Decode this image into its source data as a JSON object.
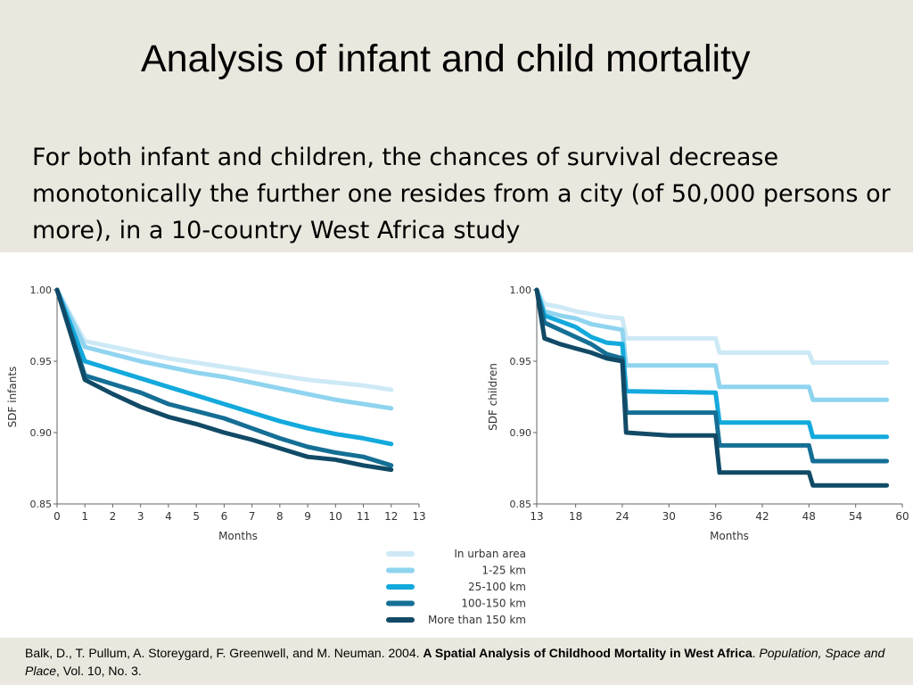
{
  "slide": {
    "title": "Analysis of infant and child mortality",
    "body": "For both infant and children, the chances of survival decrease monotonically the further one resides from a city (of 50,000 persons or more), in a 10-country West Africa study"
  },
  "legend": {
    "items": [
      {
        "label": "In urban area",
        "color": "#cde9f6"
      },
      {
        "label": "1-25 km",
        "color": "#8fd4ef"
      },
      {
        "label": "25-100 km",
        "color": "#13a9dd"
      },
      {
        "label": "100-150 km",
        "color": "#156f95"
      },
      {
        "label": "More than 150 km",
        "color": "#114a66"
      }
    ]
  },
  "chart_data": [
    {
      "type": "line",
      "xlabel": "Months",
      "ylabel": "SDF infants",
      "xlim": [
        0,
        13
      ],
      "ylim": [
        0.85,
        1.0
      ],
      "x_ticks": [
        "0",
        "1",
        "2",
        "3",
        "4",
        "5",
        "6",
        "7",
        "8",
        "9",
        "10",
        "11",
        "12",
        "13"
      ],
      "y_ticks": [
        "0.85",
        "0.90",
        "0.95",
        "1.00"
      ],
      "series": [
        {
          "name": "In urban area",
          "color": "#cde9f6",
          "x": [
            0,
            1,
            2,
            3,
            4,
            5,
            6,
            7,
            8,
            9,
            10,
            11,
            12
          ],
          "y": [
            1.0,
            0.964,
            0.96,
            0.956,
            0.952,
            0.949,
            0.946,
            0.943,
            0.94,
            0.937,
            0.935,
            0.933,
            0.93
          ]
        },
        {
          "name": "1-25 km",
          "color": "#8fd4ef",
          "x": [
            0,
            1,
            2,
            3,
            4,
            5,
            6,
            7,
            8,
            9,
            10,
            11,
            12
          ],
          "y": [
            1.0,
            0.96,
            0.955,
            0.95,
            0.946,
            0.942,
            0.939,
            0.935,
            0.931,
            0.927,
            0.923,
            0.92,
            0.917
          ]
        },
        {
          "name": "25-100 km",
          "color": "#13a9dd",
          "x": [
            0,
            1,
            2,
            3,
            4,
            5,
            6,
            7,
            8,
            9,
            10,
            11,
            12
          ],
          "y": [
            1.0,
            0.95,
            0.944,
            0.938,
            0.932,
            0.926,
            0.92,
            0.914,
            0.908,
            0.903,
            0.899,
            0.896,
            0.892
          ]
        },
        {
          "name": "100-150 km",
          "color": "#156f95",
          "x": [
            0,
            1,
            2,
            3,
            4,
            5,
            6,
            7,
            8,
            9,
            10,
            11,
            12
          ],
          "y": [
            1.0,
            0.94,
            0.934,
            0.928,
            0.92,
            0.915,
            0.91,
            0.903,
            0.896,
            0.89,
            0.886,
            0.883,
            0.877
          ]
        },
        {
          "name": "More than 150 km",
          "color": "#114a66",
          "x": [
            0,
            1,
            2,
            3,
            4,
            5,
            6,
            7,
            8,
            9,
            10,
            11,
            12
          ],
          "y": [
            1.0,
            0.937,
            0.927,
            0.918,
            0.911,
            0.906,
            0.9,
            0.895,
            0.889,
            0.883,
            0.881,
            0.877,
            0.874
          ]
        }
      ]
    },
    {
      "type": "line",
      "xlabel": "Months",
      "ylabel": "SDF children",
      "xlim": [
        13,
        60
      ],
      "ylim": [
        0.85,
        1.0
      ],
      "x_ticks": [
        "13",
        "18",
        "24",
        "30",
        "36",
        "42",
        "48",
        "54",
        "60"
      ],
      "x_tick_values": [
        13,
        18,
        24,
        30,
        36,
        42,
        48,
        54,
        60
      ],
      "y_ticks": [
        "0.85",
        "0.90",
        "0.95",
        "1.00"
      ],
      "series": [
        {
          "name": "In urban area",
          "color": "#cde9f6",
          "x": [
            13,
            14,
            16,
            18,
            20,
            22,
            24,
            24.5,
            36,
            36.5,
            48,
            48.5,
            58
          ],
          "y": [
            1.0,
            0.99,
            0.988,
            0.985,
            0.983,
            0.981,
            0.98,
            0.966,
            0.966,
            0.956,
            0.956,
            0.949,
            0.949
          ]
        },
        {
          "name": "1-25 km",
          "color": "#8fd4ef",
          "x": [
            13,
            14,
            16,
            18,
            20,
            22,
            24,
            24.5,
            36,
            36.5,
            48,
            48.5,
            58
          ],
          "y": [
            1.0,
            0.985,
            0.982,
            0.98,
            0.976,
            0.974,
            0.972,
            0.947,
            0.947,
            0.932,
            0.932,
            0.923,
            0.923
          ]
        },
        {
          "name": "25-100 km",
          "color": "#13a9dd",
          "x": [
            13,
            14,
            16,
            18,
            20,
            22,
            24,
            24.5,
            36,
            36.5,
            48,
            48.5,
            58
          ],
          "y": [
            1.0,
            0.982,
            0.978,
            0.974,
            0.967,
            0.963,
            0.962,
            0.929,
            0.928,
            0.907,
            0.907,
            0.897,
            0.897
          ]
        },
        {
          "name": "100-150 km",
          "color": "#156f95",
          "x": [
            13,
            14,
            16,
            18,
            20,
            22,
            24,
            24.5,
            36,
            36.5,
            48,
            48.5,
            58
          ],
          "y": [
            1.0,
            0.977,
            0.972,
            0.967,
            0.962,
            0.955,
            0.952,
            0.914,
            0.914,
            0.891,
            0.891,
            0.88,
            0.88
          ]
        },
        {
          "name": "More than 150 km",
          "color": "#114a66",
          "x": [
            13,
            14,
            16,
            18,
            20,
            22,
            24,
            24.5,
            30,
            36,
            36.5,
            48,
            48.5,
            58
          ],
          "y": [
            1.0,
            0.966,
            0.962,
            0.959,
            0.956,
            0.952,
            0.95,
            0.9,
            0.898,
            0.898,
            0.872,
            0.872,
            0.863,
            0.863
          ]
        }
      ]
    }
  ],
  "citation": {
    "authors": "Balk, D., T. Pullum, A. Storeygard, F. Greenwell, and M. Neuman. 2004. ",
    "title": "A Spatial Analysis of Childhood Mortality in West Africa",
    "sep": ". ",
    "journal": "Population, Space and Place",
    "rest": ", Vol. 10, No. 3."
  }
}
